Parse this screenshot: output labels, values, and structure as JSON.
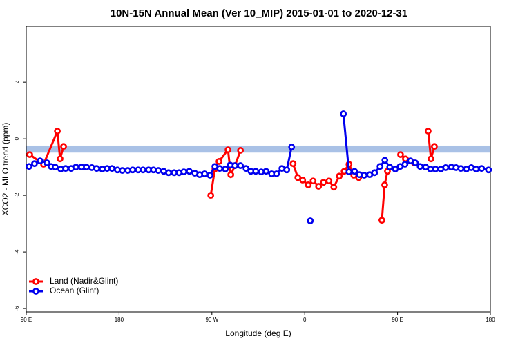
{
  "chart_data": {
    "type": "line",
    "title": "10N-15N Annual Mean (Ver 10_MIP)   2015-01-01 to 2020-12-31",
    "xlabel": "Longitude (deg E)",
    "ylabel": "XCO2 - MLO trend (ppm)",
    "xlim": [
      90,
      540
    ],
    "ylim": [
      -6.12,
      3.98
    ],
    "xticks": [
      {
        "value": 90,
        "label": "90 E"
      },
      {
        "value": 180,
        "label": "180"
      },
      {
        "value": 270,
        "label": "90 W"
      },
      {
        "value": 360,
        "label": "0"
      },
      {
        "value": 450,
        "label": "90 E"
      },
      {
        "value": 540,
        "label": "180"
      }
    ],
    "yticks": [
      -6,
      -4,
      -2,
      0,
      2
    ],
    "band": {
      "ymin": -0.49,
      "ymax": -0.24,
      "color": "#a9c1e6"
    },
    "legend": "bottom-left",
    "series": [
      {
        "name": "Land (Nadir&Glint)",
        "color": "#ff0000",
        "x": [
          93.4,
          106.8,
          120.2,
          122.8,
          126.2,
          200,
          268.9,
          272.9,
          276.9,
          285.6,
          288.3,
          292.4,
          297.7,
          310,
          348.7,
          353.3,
          358.0,
          363.4,
          368.1,
          373.4,
          378.1,
          383.5,
          388.2,
          393.5,
          398.2,
          402.9,
          407.6,
          412.3,
          430,
          434.8,
          437.5,
          440.2,
          450,
          452.9,
          457.6,
          466.3,
          475,
          479.7,
          482.4,
          485.7
        ],
        "values": [
          -0.56,
          -0.9,
          0.27,
          -0.71,
          -0.27,
          null,
          -2.0,
          -1.07,
          -0.8,
          -0.39,
          -1.27,
          -0.95,
          -0.41,
          null,
          -0.88,
          -1.37,
          -1.46,
          -1.63,
          -1.49,
          -1.68,
          -1.54,
          -1.49,
          -1.71,
          -1.32,
          -1.15,
          -0.9,
          -1.29,
          -1.37,
          null,
          -2.88,
          -1.63,
          -1.15,
          null,
          -0.56,
          -0.71,
          -0.85,
          null,
          0.27,
          -0.71,
          -0.27
        ]
      },
      {
        "name": "Ocean (Glint)",
        "color": "#0000ee",
        "x": [
          92.7,
          98.0,
          103.4,
          110.1,
          114.1,
          118.1,
          123.5,
          128.2,
          133.5,
          138.2,
          143.6,
          148.3,
          153.6,
          158.3,
          163.7,
          168.4,
          173.1,
          178.4,
          183.1,
          188.5,
          193.2,
          198.5,
          203.2,
          208.6,
          213.3,
          218.0,
          223.3,
          228.0,
          233.4,
          238.1,
          242.8,
          248.1,
          253.5,
          258.2,
          262.9,
          268.2,
          272.9,
          277.6,
          283.0,
          287.7,
          292.4,
          297.7,
          303.1,
          307.8,
          312.5,
          317.8,
          322.5,
          327.9,
          332.6,
          337.9,
          342.6,
          347.3,
          356,
          365.4,
          380,
          397.5,
          402.9,
          408.3,
          412.9,
          417.6,
          423.0,
          427.7,
          433.0,
          437.7,
          442.4,
          447.8,
          452.5,
          457.2,
          462.5,
          467.2,
          471.9,
          477.3,
          482.0,
          486.7,
          492.0,
          496.7,
          502.1,
          506.7,
          511.4,
          516.8,
          521.5,
          526.2,
          531.5,
          538.2
        ],
        "values": [
          -0.98,
          -0.88,
          -0.78,
          -0.85,
          -0.98,
          -1.0,
          -1.07,
          -1.05,
          -1.05,
          -1.0,
          -1.0,
          -1.0,
          -1.02,
          -1.05,
          -1.07,
          -1.05,
          -1.05,
          -1.1,
          -1.12,
          -1.12,
          -1.1,
          -1.1,
          -1.1,
          -1.1,
          -1.1,
          -1.12,
          -1.15,
          -1.2,
          -1.2,
          -1.2,
          -1.17,
          -1.15,
          -1.22,
          -1.27,
          -1.24,
          -1.29,
          -0.98,
          -1.05,
          -1.07,
          -0.93,
          -0.95,
          -0.95,
          -1.05,
          -1.15,
          -1.15,
          -1.17,
          -1.15,
          -1.24,
          -1.24,
          -1.05,
          -1.1,
          -0.29,
          null,
          -2.9,
          null,
          0.88,
          -1.17,
          -1.15,
          -1.27,
          -1.29,
          -1.27,
          -1.2,
          -0.98,
          -0.76,
          -1.0,
          -1.07,
          -0.98,
          -0.9,
          -0.78,
          -0.85,
          -0.98,
          -1.0,
          -1.07,
          -1.07,
          -1.07,
          -1.02,
          -1.0,
          -1.02,
          -1.05,
          -1.07,
          -1.02,
          -1.07,
          -1.05,
          -1.1
        ]
      }
    ]
  }
}
